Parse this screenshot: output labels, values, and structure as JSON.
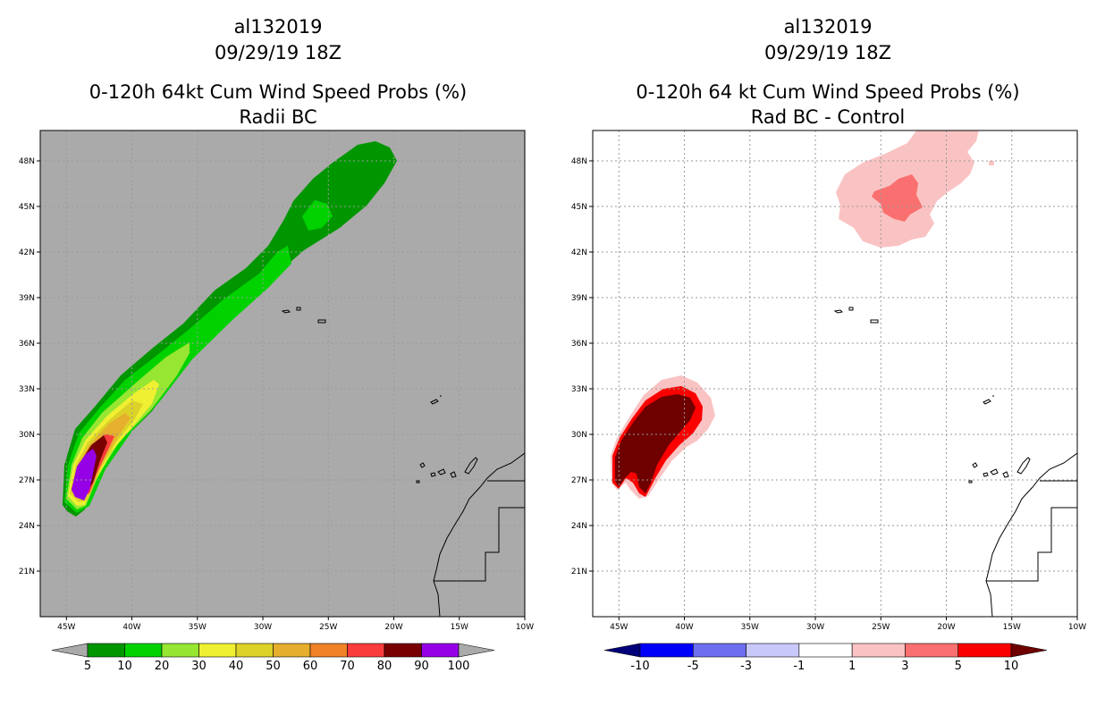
{
  "chart_data": [
    {
      "type": "contour-map",
      "title_lines": [
        "al132019",
        "09/29/19 18Z",
        "0-120h 64kt Cum Wind Speed Probs (%)",
        "Radii BC"
      ],
      "xlim": [
        -47,
        -10
      ],
      "ylim": [
        18,
        50
      ],
      "x_ticks": [
        -45,
        -40,
        -35,
        -30,
        -25,
        -20,
        -15,
        -10
      ],
      "x_tick_labels": [
        "45W",
        "40W",
        "35W",
        "30W",
        "25W",
        "20W",
        "15W",
        "10W"
      ],
      "y_ticks": [
        21,
        24,
        27,
        30,
        33,
        36,
        39,
        42,
        45,
        48
      ],
      "y_tick_labels": [
        "21N",
        "24N",
        "27N",
        "30N",
        "33N",
        "36N",
        "39N",
        "42N",
        "45N",
        "48N"
      ],
      "background_color": "#aaaaaa",
      "colorbar": {
        "levels": [
          "5",
          "10",
          "20",
          "30",
          "40",
          "50",
          "60",
          "70",
          "80",
          "90",
          "100"
        ],
        "colors": [
          "#009600",
          "#00d200",
          "#96e632",
          "#f0f032",
          "#dcd228",
          "#e6af2d",
          "#f08228",
          "#fa3c3c",
          "#780000",
          "#9600e6"
        ],
        "low_end_color": "#aaaaaa",
        "high_end_color": "#aaaaaa"
      },
      "probability_bands": [
        {
          "level": "5-10",
          "color": "#009600",
          "along_track_lon": [
            -44.5,
            -42,
            -38,
            -34,
            -30,
            -26,
            -23,
            -21
          ],
          "along_track_lat": [
            25.8,
            29,
            33.5,
            37.3,
            40.5,
            44,
            47,
            48.3
          ]
        },
        {
          "level": "10-20",
          "color": "#00d200",
          "along_track_lon": [
            -44.3,
            -41,
            -37,
            -33,
            -30
          ],
          "along_track_lat": [
            26,
            30,
            34.5,
            38,
            40.5
          ]
        },
        {
          "level": "20-30",
          "color": "#96e632",
          "along_track_lon": [
            -44.2,
            -41.5,
            -38
          ],
          "along_track_lat": [
            26.3,
            30,
            34.5
          ]
        },
        {
          "level": "30-40",
          "color": "#f0f032",
          "along_track_lon": [
            -44,
            -41.8,
            -40
          ],
          "along_track_lat": [
            26.5,
            30,
            32.5
          ]
        },
        {
          "level": "80-90",
          "color": "#780000",
          "along_track_lon": [
            -43.8,
            -42.5
          ],
          "along_track_lat": [
            27,
            30.5
          ]
        },
        {
          "level": "90-100",
          "color": "#9600e6",
          "along_track_lon": [
            -44.3,
            -43
          ],
          "along_track_lat": [
            26,
            29.5
          ]
        }
      ]
    },
    {
      "type": "contour-map",
      "title_lines": [
        "al132019",
        "09/29/19 18Z",
        "0-120h 64 kt Cum Wind Speed Probs (%)",
        "Rad BC - Control"
      ],
      "xlim": [
        -47,
        -10
      ],
      "ylim": [
        18,
        50
      ],
      "x_ticks": [
        -45,
        -40,
        -35,
        -30,
        -25,
        -20,
        -15,
        -10
      ],
      "x_tick_labels": [
        "45W",
        "40W",
        "35W",
        "30W",
        "25W",
        "20W",
        "15W",
        "10W"
      ],
      "y_ticks": [
        21,
        24,
        27,
        30,
        33,
        36,
        39,
        42,
        45,
        48
      ],
      "y_tick_labels": [
        "21N",
        "24N",
        "27N",
        "30N",
        "33N",
        "36N",
        "39N",
        "42N",
        "45N",
        "48N"
      ],
      "background_color": "#ffffff",
      "colorbar": {
        "levels": [
          "-10",
          "-5",
          "-3",
          "-1",
          "1",
          "3",
          "5",
          "10"
        ],
        "colors": [
          "#0000fa",
          "#6e6ef0",
          "#c8c8fa",
          "#ffffff",
          "#fac3c3",
          "#fa7070",
          "#fa0000"
        ],
        "low_end_color": "#00007a",
        "high_end_color": "#6e0000"
      },
      "difference_areas": [
        {
          "range": "1 to 3",
          "color": "#fac3c3",
          "region": "north",
          "center_lon": -23.5,
          "center_lat": 46
        },
        {
          "range": "3 to 5",
          "color": "#fa7070",
          "region": "north",
          "center_lon": -24,
          "center_lat": 45.5
        },
        {
          "range": "1 to 3",
          "color": "#fac3c3",
          "region": "south",
          "center_lon": -42,
          "center_lat": 30.5
        },
        {
          "range": "5 to 10",
          "color": "#fa0000",
          "region": "south",
          "center_lon": -42.5,
          "center_lat": 30
        },
        {
          "range": ">10",
          "color": "#6e0000",
          "region": "south",
          "center_lon": -43,
          "center_lat": 29.7
        }
      ]
    }
  ]
}
